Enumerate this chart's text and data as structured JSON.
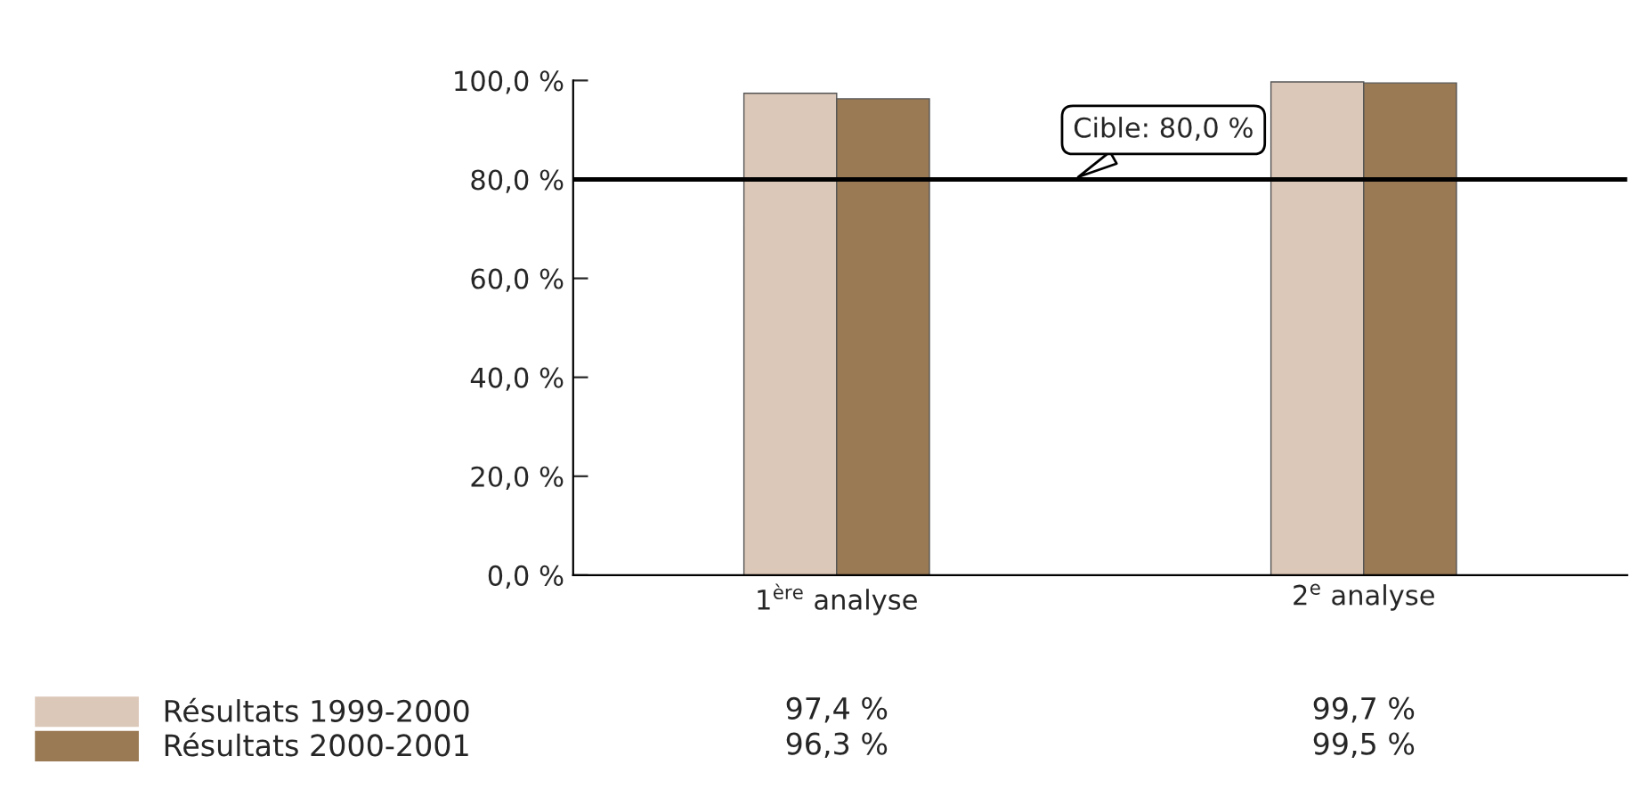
{
  "chart_data": {
    "type": "bar",
    "categories": [
      "1$^{ère}$ analyse",
      "2$^{e}$ analyse"
    ],
    "series": [
      {
        "name": "Résultats 1999-2000",
        "color": "#dcc8b8",
        "values": [
          97.4,
          99.7
        ]
      },
      {
        "name": "Résultats 2000-2001",
        "color": "#9a7a55",
        "values": [
          96.3,
          99.5
        ]
      }
    ],
    "value_labels": [
      [
        "97,4 %",
        "99,7 %"
      ],
      [
        "96,3 %",
        "99,5 %"
      ]
    ],
    "ylim": [
      0,
      100
    ],
    "yticks": [
      {
        "value": 0,
        "label": "0,0 %"
      },
      {
        "value": 20,
        "label": "20,0 %"
      },
      {
        "value": 40,
        "label": "40,0 %"
      },
      {
        "value": 60,
        "label": "60,0 %"
      },
      {
        "value": 80,
        "label": "80,0 %"
      },
      {
        "value": 100,
        "label": "100,0 %"
      }
    ],
    "ref_lines": [
      {
        "axis": "y",
        "value": 80,
        "label": "Cible: 80,0 %",
        "color": "#000000"
      }
    ],
    "legend": "bottom left",
    "grid": false
  }
}
